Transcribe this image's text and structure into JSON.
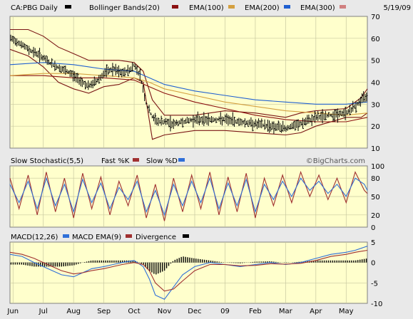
{
  "colors": {
    "page_bg": "#e9e9e9",
    "plot_bg": "#ffffcc",
    "grid": "#c8c8a0",
    "price": "#000000",
    "bollinger": "#7a1515",
    "ema100": "#8b1010",
    "ema200": "#d4a040",
    "ema300": "#2060d0",
    "ema300_swatch": "#d08080",
    "stoch_k": "#a03030",
    "stoch_d": "#2f6fd8",
    "macd": "#2f6fd8",
    "macd_ema": "#a03030",
    "divergence": "#000000"
  },
  "header": {
    "symbol_label": "CA:PBG Daily",
    "bollinger_label": "Bollinger Bands(20)",
    "ema100_label": "EMA(100)",
    "ema200_label": "EMA(200)",
    "ema300_label": "EMA(300)",
    "date": "5/19/09"
  },
  "watermark": "©BigCharts.com",
  "chart_data": [
    {
      "type": "ohlc",
      "panel": "price",
      "ylim": [
        10,
        70
      ],
      "y_ticks": [
        "10",
        "20",
        "30",
        "40",
        "50",
        "60",
        "70"
      ],
      "x_ticks": [
        "Jun",
        "Jul",
        "Aug",
        "Sep",
        "Oct",
        "Nov",
        "Dec",
        "09",
        "Feb",
        "Mar",
        "Apr",
        "May"
      ],
      "x_tick_month_index": [
        0,
        1,
        2,
        3,
        4,
        5,
        6,
        7,
        8,
        9,
        10,
        11
      ],
      "x_range": [
        -0.1,
        11.7
      ],
      "series": [
        {
          "name": "Price",
          "x": [
            -0.1,
            0.2,
            0.5,
            0.8,
            1.0,
            1.3,
            1.6,
            1.9,
            2.2,
            2.5,
            2.8,
            3.0,
            3.3,
            3.6,
            3.9,
            4.0,
            4.2,
            4.4,
            4.6,
            4.8,
            5.0,
            5.3,
            5.6,
            6.0,
            6.5,
            7.0,
            7.5,
            8.0,
            8.5,
            9.0,
            9.5,
            10.0,
            10.5,
            11.0,
            11.3,
            11.5,
            11.7
          ],
          "y": [
            60,
            58,
            55,
            53,
            51,
            48,
            46,
            44,
            41,
            38,
            41,
            44,
            46,
            44,
            46,
            48,
            43,
            30,
            24,
            22,
            22,
            21,
            22,
            23,
            23,
            23,
            22,
            21,
            20,
            19,
            21,
            24,
            25,
            26,
            29,
            32,
            34
          ]
        },
        {
          "name": "Bollinger upper",
          "x": [
            -0.1,
            0.5,
            1.0,
            1.5,
            2.0,
            2.5,
            3.0,
            3.5,
            4.0,
            4.3,
            4.6,
            5.0,
            6.0,
            7.0,
            8.0,
            9.0,
            9.5,
            10.0,
            11.0,
            11.5,
            11.7
          ],
          "y": [
            64,
            64,
            61,
            56,
            53,
            50,
            50,
            50,
            49,
            45,
            32,
            25,
            25,
            27,
            26,
            24,
            26,
            27,
            28,
            33,
            37
          ]
        },
        {
          "name": "Bollinger lower",
          "x": [
            -0.1,
            0.5,
            1.0,
            1.5,
            2.0,
            2.5,
            3.0,
            3.5,
            4.0,
            4.3,
            4.6,
            5.0,
            6.0,
            7.0,
            8.0,
            9.0,
            9.5,
            10.0,
            11.0,
            11.5,
            11.7
          ],
          "y": [
            55,
            52,
            47,
            40,
            37,
            35,
            38,
            39,
            42,
            40,
            14,
            16,
            18,
            18,
            17,
            16,
            17,
            20,
            24,
            24,
            26
          ]
        },
        {
          "name": "EMA(100)",
          "x": [
            -0.1,
            1.0,
            2.0,
            3.0,
            4.0,
            4.5,
            5.0,
            6.0,
            7.0,
            8.0,
            9.0,
            10.0,
            11.0,
            11.7
          ],
          "y": [
            43,
            43,
            42,
            42,
            41,
            38,
            35,
            31,
            28,
            25,
            23,
            22,
            22,
            24
          ]
        },
        {
          "name": "EMA(200)",
          "x": [
            -0.1,
            1.0,
            2.0,
            3.0,
            4.0,
            4.5,
            5.0,
            6.0,
            7.0,
            8.0,
            9.0,
            10.0,
            11.0,
            11.7
          ],
          "y": [
            43,
            44,
            44,
            43,
            42,
            40,
            37,
            34,
            31,
            29,
            27,
            26,
            25,
            26
          ]
        },
        {
          "name": "EMA(300)",
          "x": [
            -0.1,
            1.0,
            2.0,
            3.0,
            4.0,
            4.5,
            5.0,
            6.0,
            7.0,
            8.0,
            9.0,
            10.0,
            11.0,
            11.7
          ],
          "y": [
            48,
            49,
            48,
            46,
            45,
            42,
            39,
            36,
            34,
            32,
            31,
            30,
            30,
            31
          ]
        }
      ]
    },
    {
      "type": "line",
      "panel": "stochastic",
      "title": "Slow Stochastic(5,5)",
      "legend": [
        "Fast %K",
        "Slow %D"
      ],
      "ylim": [
        0,
        100
      ],
      "y_ticks": [
        "0",
        "20",
        "50",
        "80",
        "100"
      ],
      "x_range": [
        -0.1,
        11.7
      ],
      "series": [
        {
          "name": "Fast %K",
          "x": [
            -0.1,
            0.2,
            0.5,
            0.8,
            1.1,
            1.4,
            1.7,
            2.0,
            2.3,
            2.6,
            2.9,
            3.2,
            3.5,
            3.8,
            4.1,
            4.4,
            4.7,
            5.0,
            5.3,
            5.6,
            5.9,
            6.2,
            6.5,
            6.8,
            7.1,
            7.4,
            7.7,
            8.0,
            8.3,
            8.6,
            8.9,
            9.2,
            9.5,
            9.8,
            10.1,
            10.4,
            10.7,
            11.0,
            11.3,
            11.6,
            11.7
          ],
          "y": [
            80,
            30,
            85,
            20,
            90,
            25,
            80,
            15,
            88,
            30,
            82,
            20,
            75,
            35,
            85,
            15,
            70,
            10,
            80,
            25,
            85,
            30,
            90,
            20,
            82,
            25,
            88,
            15,
            80,
            35,
            85,
            40,
            90,
            50,
            85,
            45,
            80,
            40,
            90,
            60,
            55
          ]
        },
        {
          "name": "Slow %D",
          "x": [
            -0.1,
            0.2,
            0.5,
            0.8,
            1.1,
            1.4,
            1.7,
            2.0,
            2.3,
            2.6,
            2.9,
            3.2,
            3.5,
            3.8,
            4.1,
            4.4,
            4.7,
            5.0,
            5.3,
            5.6,
            5.9,
            6.2,
            6.5,
            6.8,
            7.1,
            7.4,
            7.7,
            8.0,
            8.3,
            8.6,
            8.9,
            9.2,
            9.5,
            9.8,
            10.1,
            10.4,
            10.7,
            11.0,
            11.3,
            11.6,
            11.7
          ],
          "y": [
            70,
            40,
            75,
            30,
            80,
            35,
            70,
            25,
            78,
            40,
            72,
            30,
            65,
            45,
            75,
            25,
            60,
            20,
            70,
            35,
            75,
            40,
            80,
            30,
            72,
            35,
            78,
            25,
            70,
            45,
            75,
            50,
            80,
            60,
            75,
            55,
            70,
            50,
            80,
            70,
            60
          ]
        }
      ]
    },
    {
      "type": "line",
      "panel": "macd",
      "title": "MACD(12,26)",
      "legend": [
        "MACD EMA(9)",
        "Divergence"
      ],
      "ylim": [
        -10,
        5
      ],
      "y_ticks": [
        "-10",
        "-5",
        "0",
        "5"
      ],
      "x_range": [
        -0.1,
        11.7
      ],
      "series": [
        {
          "name": "MACD(12,26)",
          "x": [
            -0.1,
            0.3,
            0.7,
            1.0,
            1.3,
            1.6,
            2.0,
            2.3,
            2.6,
            3.0,
            3.3,
            3.6,
            4.0,
            4.3,
            4.5,
            4.7,
            5.0,
            5.3,
            5.6,
            6.0,
            6.5,
            7.0,
            7.5,
            8.0,
            8.5,
            9.0,
            9.5,
            10.0,
            10.5,
            11.0,
            11.3,
            11.7
          ],
          "y": [
            2,
            1.5,
            0,
            -1,
            -2,
            -3,
            -3.5,
            -2.5,
            -1.5,
            -1,
            -0.5,
            0,
            0.5,
            -1,
            -4,
            -8,
            -9,
            -6,
            -3,
            -1,
            0,
            -0.5,
            -1,
            -0.5,
            0,
            -0.5,
            0,
            1,
            2,
            2.5,
            3,
            4
          ]
        },
        {
          "name": "MACD EMA(9)",
          "x": [
            -0.1,
            0.3,
            0.7,
            1.0,
            1.3,
            1.6,
            2.0,
            2.3,
            2.6,
            3.0,
            3.3,
            3.6,
            4.0,
            4.3,
            4.5,
            4.7,
            5.0,
            5.3,
            5.6,
            6.0,
            6.5,
            7.0,
            7.5,
            8.0,
            8.5,
            9.0,
            9.5,
            10.0,
            10.5,
            11.0,
            11.3,
            11.7
          ],
          "y": [
            2.5,
            2,
            1,
            0,
            -1,
            -2,
            -2.8,
            -2.5,
            -2,
            -1.5,
            -1,
            -0.5,
            0,
            -0.5,
            -2,
            -5,
            -7,
            -6.5,
            -4.5,
            -2,
            -0.5,
            -0.5,
            -0.8,
            -0.7,
            -0.3,
            -0.4,
            -0.2,
            0.5,
            1.5,
            2,
            2.5,
            3
          ]
        },
        {
          "name": "Divergence",
          "x": [
            -0.1,
            0.3,
            0.7,
            1.0,
            1.3,
            1.6,
            2.0,
            2.3,
            2.6,
            3.0,
            3.3,
            3.6,
            4.0,
            4.3,
            4.5,
            4.7,
            5.0,
            5.3,
            5.6,
            6.0,
            6.5,
            7.0,
            7.5,
            8.0,
            8.5,
            9.0,
            9.5,
            10.0,
            10.5,
            11.0,
            11.3,
            11.7
          ],
          "y": [
            -0.5,
            -0.5,
            -1,
            -1,
            -1,
            -1,
            -0.7,
            0,
            0.5,
            0.5,
            0.5,
            0.5,
            0.5,
            -0.5,
            -2,
            -3,
            -2,
            0.5,
            1.5,
            1,
            0.5,
            0,
            -0.2,
            0.2,
            0.3,
            -0.1,
            0.2,
            0.5,
            0.5,
            0.5,
            0.5,
            1
          ]
        }
      ]
    }
  ]
}
